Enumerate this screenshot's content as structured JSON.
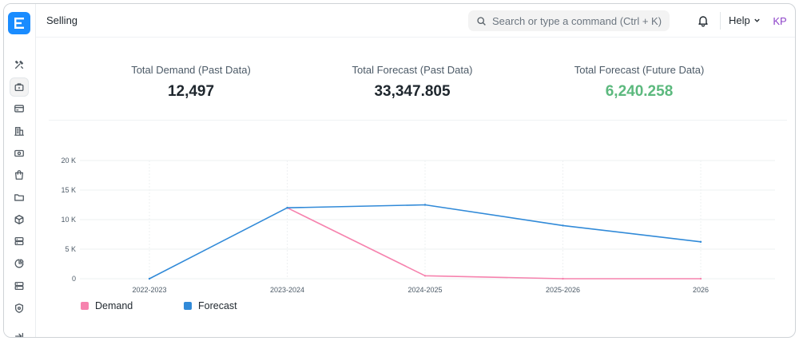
{
  "header": {
    "page_title": "Selling",
    "search_placeholder": "Search or type a command (Ctrl + K)",
    "help_label": "Help",
    "avatar_initials": "KP"
  },
  "sidebar": {
    "items": [
      {
        "icon": "tools-icon"
      },
      {
        "icon": "briefcase-icon",
        "active": true
      },
      {
        "icon": "card-icon"
      },
      {
        "icon": "building-icon"
      },
      {
        "icon": "money-icon"
      },
      {
        "icon": "shopping-bag-icon"
      },
      {
        "icon": "folder-icon"
      },
      {
        "icon": "box-icon"
      },
      {
        "icon": "server-icon"
      },
      {
        "icon": "pie-chart-icon"
      },
      {
        "icon": "database-icon"
      },
      {
        "icon": "shield-icon"
      },
      {
        "icon": "collapse-icon"
      }
    ]
  },
  "stats": [
    {
      "label": "Total Demand (Past Data)",
      "value": "12,497"
    },
    {
      "label": "Total Forecast (Past Data)",
      "value": "33,347.805"
    },
    {
      "label": "Total Forecast (Future Data)",
      "value": "6,240.258",
      "color": "#5cb97e"
    }
  ],
  "chart_data": {
    "type": "line",
    "categories": [
      "2022-2023",
      "2023-2024",
      "2024-2025",
      "2025-2026",
      "2026"
    ],
    "series": [
      {
        "name": "Demand",
        "color": "#f683ae",
        "values": [
          null,
          12000,
          500,
          0,
          0
        ]
      },
      {
        "name": "Forecast",
        "color": "#318ad8",
        "values": [
          0,
          12000,
          12500,
          9000,
          6240
        ]
      }
    ],
    "ylim": [
      0,
      20000
    ],
    "yticks": [
      0,
      5000,
      10000,
      15000,
      20000
    ],
    "ytick_labels": [
      "0",
      "5 K",
      "10 K",
      "15 K",
      "20 K"
    ],
    "grid": true,
    "legend_position": "bottom-left"
  }
}
